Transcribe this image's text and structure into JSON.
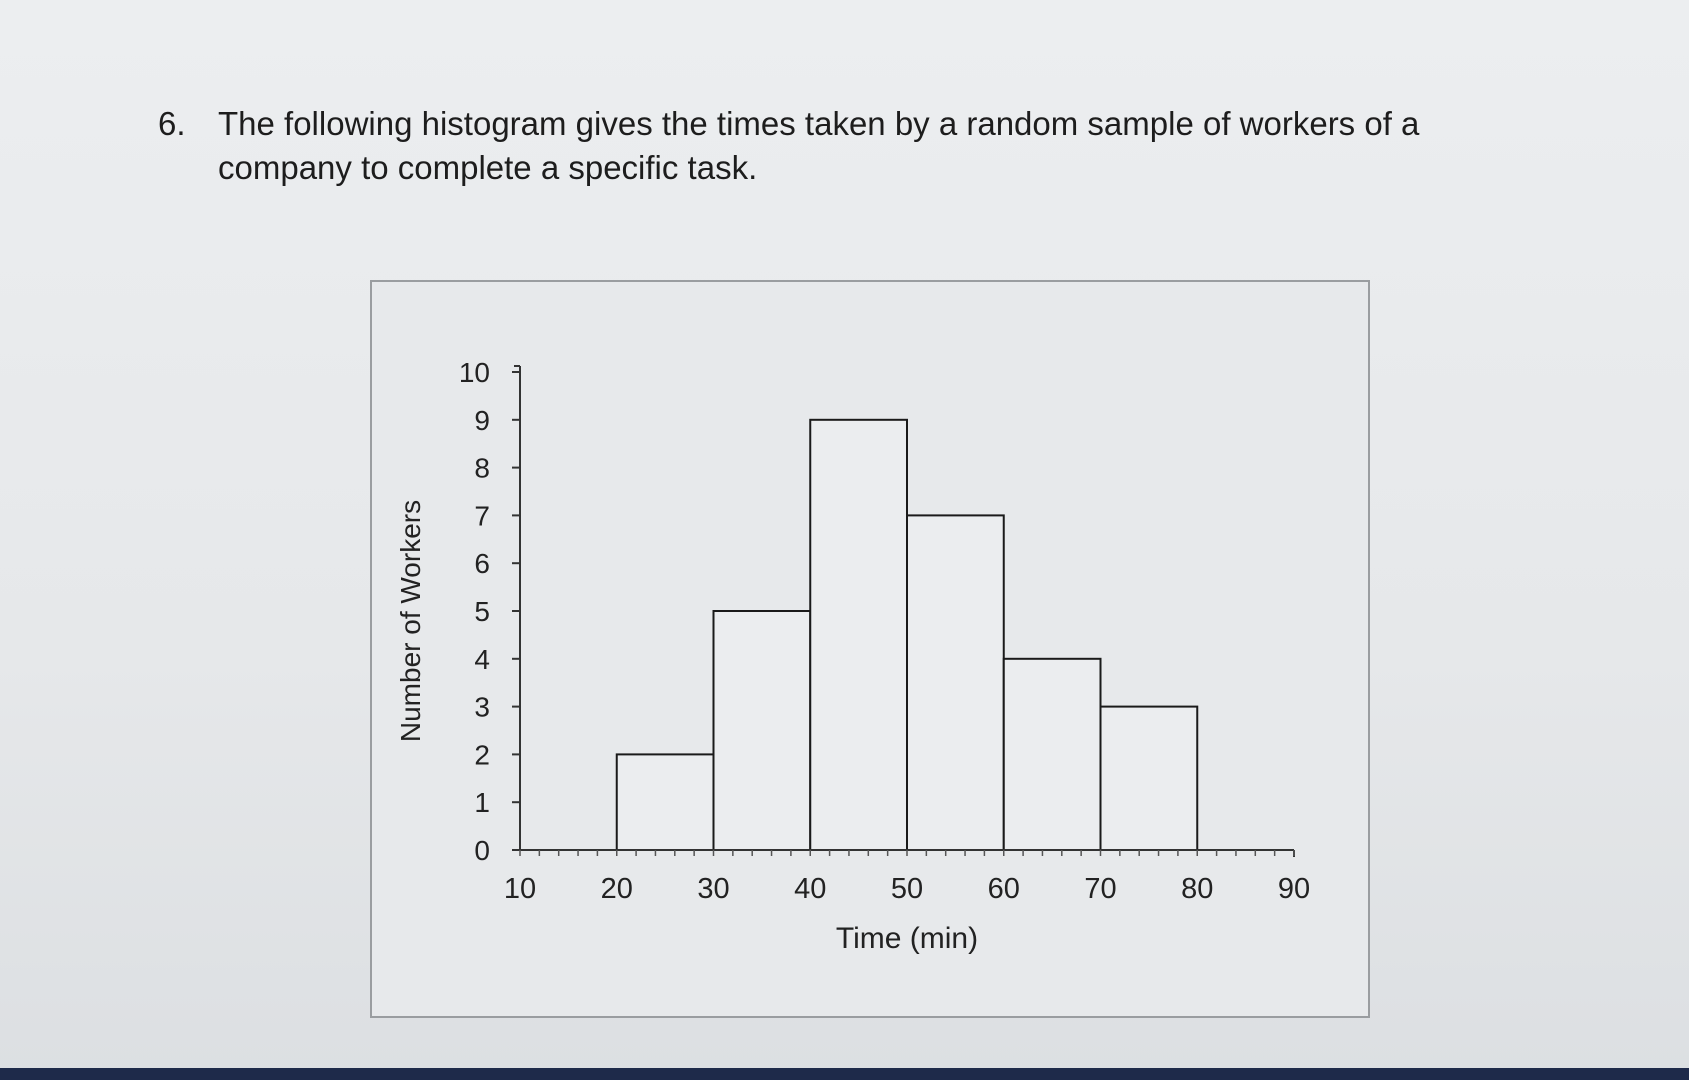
{
  "question": {
    "number": "6.",
    "text": "The following histogram gives the times taken by a random sample of workers of a company to complete a specific task."
  },
  "chart_data": {
    "type": "bar",
    "histogram": true,
    "bins": [
      {
        "from": 20,
        "to": 30,
        "count": 2
      },
      {
        "from": 30,
        "to": 40,
        "count": 5
      },
      {
        "from": 40,
        "to": 50,
        "count": 9
      },
      {
        "from": 50,
        "to": 60,
        "count": 7
      },
      {
        "from": 60,
        "to": 70,
        "count": 4
      },
      {
        "from": 70,
        "to": 80,
        "count": 3
      }
    ],
    "xlabel": "Time (min)",
    "ylabel": "Number of Workers",
    "xlim": [
      10,
      90
    ],
    "ylim": [
      0,
      10
    ],
    "xticks": [
      10,
      20,
      30,
      40,
      50,
      60,
      70,
      80,
      90
    ],
    "yticks": [
      0,
      1,
      2,
      3,
      4,
      5,
      6,
      7,
      8,
      9,
      10
    ],
    "grid": false,
    "bar_fill": "#ebedef",
    "bar_stroke": "#1a1a1a"
  }
}
